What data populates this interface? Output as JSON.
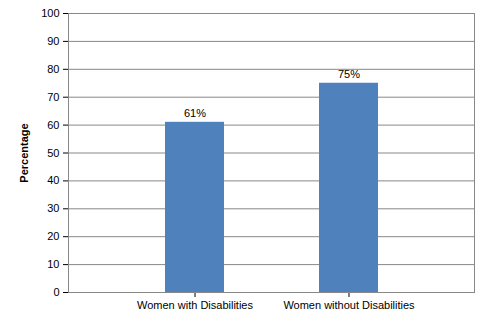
{
  "chart_data": {
    "type": "bar",
    "categories": [
      "Women with Disabilities",
      "Women without Disabilities"
    ],
    "values": [
      61,
      75
    ],
    "value_labels": [
      "61%",
      "75%"
    ],
    "data_labels": true,
    "color": "#4f81bd",
    "y_label": "Percentage",
    "ylim": [
      0,
      100
    ],
    "yticks": [
      0,
      10,
      20,
      30,
      40,
      50,
      60,
      70,
      80,
      90,
      100
    ],
    "grid": true
  }
}
